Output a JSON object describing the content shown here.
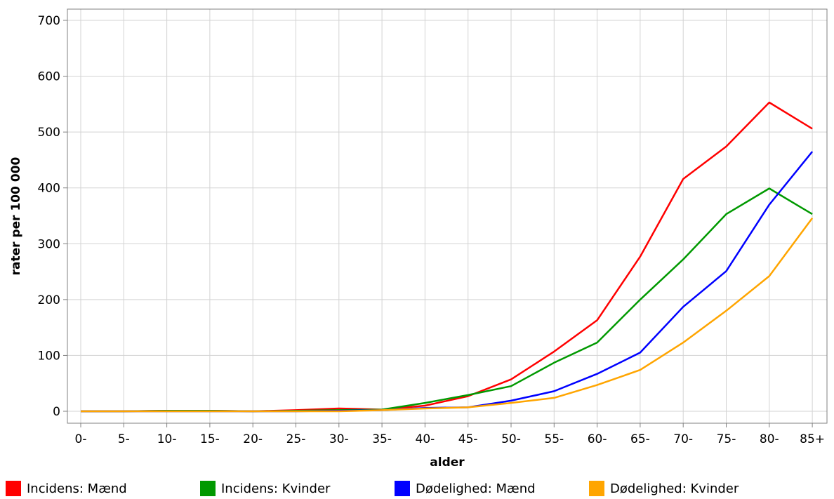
{
  "chart_data": {
    "type": "line",
    "xlabel": "alder",
    "ylabel": "rater per 100 000",
    "ylim": [
      0,
      700
    ],
    "yticks": [
      0,
      100,
      200,
      300,
      400,
      500,
      600,
      700
    ],
    "grid": true,
    "legend_position": "bottom",
    "categories": [
      "0-",
      "5-",
      "10-",
      "15-",
      "20-",
      "25-",
      "30-",
      "35-",
      "40-",
      "45-",
      "50-",
      "55-",
      "60-",
      "65-",
      "70-",
      "75-",
      "80-",
      "85+"
    ],
    "series": [
      {
        "name": "Incidens: Mænd",
        "color": "#ff0000",
        "values": [
          0,
          0,
          1,
          1,
          0,
          2,
          5,
          3,
          10,
          27,
          57,
          107,
          163,
          277,
          416,
          474,
          553,
          506
        ]
      },
      {
        "name": "Incidens: Kvinder",
        "color": "#009900",
        "values": [
          0,
          0,
          1,
          1,
          0,
          1,
          2,
          3,
          15,
          29,
          45,
          87,
          123,
          200,
          272,
          353,
          399,
          353
        ]
      },
      {
        "name": "Dødelighed: Mænd",
        "color": "#0000ff",
        "values": [
          0,
          0,
          0,
          0,
          0,
          0,
          1,
          2,
          6,
          7,
          19,
          36,
          67,
          105,
          187,
          251,
          370,
          465
        ]
      },
      {
        "name": "Dødelighed: Kvinder",
        "color": "#ffa500",
        "values": [
          0,
          0,
          0,
          0,
          0,
          0,
          0,
          2,
          5,
          7,
          15,
          24,
          47,
          74,
          123,
          180,
          242,
          346
        ]
      }
    ]
  }
}
